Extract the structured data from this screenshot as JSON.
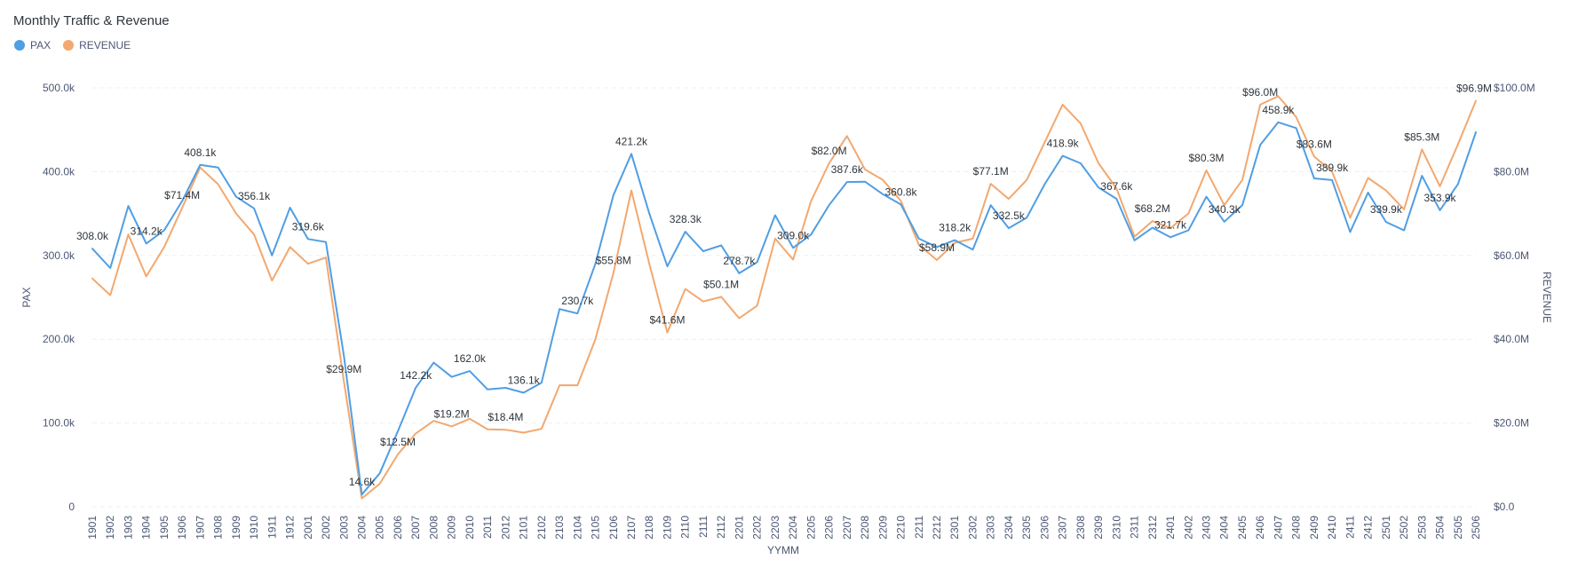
{
  "title": "Monthly Traffic & Revenue",
  "legend": [
    {
      "label": "PAX",
      "color": "#509ee3"
    },
    {
      "label": "REVENUE",
      "color": "#f2a86f"
    }
  ],
  "chart_data": {
    "type": "line",
    "title": "Monthly Traffic & Revenue",
    "xlabel": "YYMM",
    "ylabel": "PAX",
    "y2label": "REVENUE",
    "ylim": [
      0,
      500000
    ],
    "y2lim": [
      0,
      100000000
    ],
    "grid": true,
    "legend_position": "top-left",
    "left_ticks": [
      "0",
      "100.0k",
      "200.0k",
      "300.0k",
      "400.0k",
      "500.0k"
    ],
    "right_ticks": [
      "$0.0",
      "$20.0M",
      "$40.0M",
      "$60.0M",
      "$80.0M",
      "$100.0M"
    ],
    "x": [
      "1901",
      "1902",
      "1903",
      "1904",
      "1905",
      "1906",
      "1907",
      "1908",
      "1909",
      "1910",
      "1911",
      "1912",
      "2001",
      "2002",
      "2003",
      "2004",
      "2005",
      "2006",
      "2007",
      "2008",
      "2009",
      "2010",
      "2011",
      "2012",
      "2101",
      "2102",
      "2103",
      "2104",
      "2105",
      "2106",
      "2107",
      "2108",
      "2109",
      "2110",
      "2111",
      "2112",
      "2201",
      "2202",
      "2203",
      "2204",
      "2205",
      "2206",
      "2207",
      "2208",
      "2209",
      "2210",
      "2211",
      "2212",
      "2301",
      "2302",
      "2303",
      "2304",
      "2305",
      "2306",
      "2307",
      "2308",
      "2309",
      "2310",
      "2311",
      "2312",
      "2401",
      "2402",
      "2403",
      "2404",
      "2405",
      "2406",
      "2407",
      "2408",
      "2409",
      "2410",
      "2411",
      "2412",
      "2501",
      "2502",
      "2503",
      "2504",
      "2505",
      "2506"
    ],
    "series": [
      {
        "name": "PAX",
        "axis": "left",
        "color": "#509ee3",
        "values": [
          308000,
          285000,
          359000,
          314200,
          330000,
          365000,
          408100,
          405000,
          370000,
          356100,
          300000,
          357000,
          319600,
          316000,
          180000,
          14600,
          40000,
          90000,
          142200,
          172000,
          155000,
          162000,
          140000,
          142000,
          136100,
          148000,
          236000,
          230700,
          290000,
          372000,
          421200,
          350000,
          287000,
          328300,
          305000,
          312000,
          278700,
          292000,
          348000,
          309000,
          325000,
          360000,
          387600,
          388000,
          373000,
          360800,
          320000,
          310000,
          318200,
          307000,
          360000,
          332500,
          345000,
          385000,
          418900,
          410000,
          381000,
          367600,
          318000,
          333000,
          321700,
          330000,
          370000,
          340300,
          360000,
          432000,
          458900,
          452000,
          392000,
          389900,
          328000,
          375000,
          339900,
          330000,
          395000,
          353900,
          385000,
          447000
        ],
        "labels": {
          "1901": "308.0k",
          "1904": "314.2k",
          "1907": "408.1k",
          "1910": "356.1k",
          "2001": "319.6k",
          "2004": "14.6k",
          "2007": "142.2k",
          "2010": "162.0k",
          "2101": "136.1k",
          "2104": "230.7k",
          "2107": "421.2k",
          "2110": "328.3k",
          "2201": "278.7k",
          "2204": "309.0k",
          "2207": "387.6k",
          "2210": "360.8k",
          "2301": "318.2k",
          "2304": "332.5k",
          "2307": "418.9k",
          "2310": "367.6k",
          "2401": "321.7k",
          "2404": "340.3k",
          "2407": "458.9k",
          "2410": "389.9k",
          "2501": "339.9k",
          "2504": "353.9k"
        }
      },
      {
        "name": "REVENUE",
        "axis": "right",
        "color": "#f2a86f",
        "values": [
          54500000,
          50500000,
          65000000,
          55000000,
          62000000,
          71400000,
          81000000,
          77000000,
          70000000,
          65000000,
          54000000,
          62000000,
          58000000,
          59500000,
          29900000,
          2000000,
          5500000,
          12500000,
          17500000,
          20500000,
          19200000,
          21000000,
          18500000,
          18400000,
          17700000,
          18600000,
          29000000,
          29000000,
          40000000,
          55800000,
          75500000,
          58000000,
          41600000,
          52000000,
          49000000,
          50100000,
          45000000,
          48000000,
          64000000,
          59000000,
          73000000,
          82000000,
          88500000,
          80500000,
          78000000,
          73000000,
          62500000,
          58900000,
          63000000,
          64000000,
          77100000,
          73500000,
          78000000,
          87000000,
          96000000,
          91500000,
          82000000,
          76000000,
          64500000,
          68200000,
          66500000,
          70000000,
          80300000,
          72000000,
          78000000,
          96000000,
          98000000,
          93000000,
          83600000,
          80000000,
          69000000,
          78500000,
          75500000,
          71000000,
          85300000,
          76500000,
          86500000,
          96900000
        ],
        "labels": {
          "1906": "$71.4M",
          "2003": "$29.9M",
          "2006": "$12.5M",
          "2009": "$19.2M",
          "2012": "$18.4M",
          "2106": "$55.8M",
          "2109": "$41.6M",
          "2112": "$50.1M",
          "2206": "$82.0M",
          "2212": "$58.9M",
          "2303": "$77.1M",
          "2312": "$68.2M",
          "2403": "$80.3M",
          "2406": "$96.0M",
          "2409": "$83.6M",
          "2503": "$85.3M",
          "2506": "$96.9M"
        }
      }
    ]
  }
}
